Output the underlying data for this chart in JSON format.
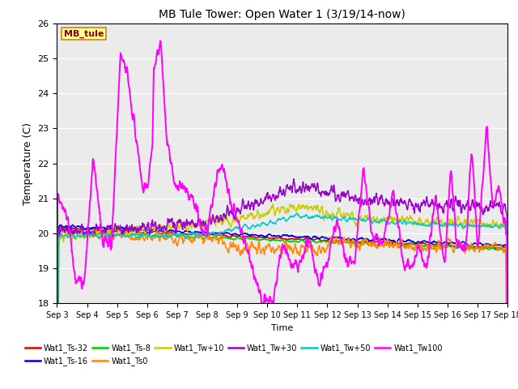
{
  "title": "MB Tule Tower: Open Water 1 (3/19/14-now)",
  "xlabel": "Time",
  "ylabel": "Temperature (C)",
  "ylim": [
    18.0,
    26.0
  ],
  "yticks": [
    18.0,
    19.0,
    20.0,
    21.0,
    22.0,
    23.0,
    24.0,
    25.0,
    26.0
  ],
  "xtick_labels": [
    "Sep 3",
    "Sep 4",
    "Sep 5",
    "Sep 6",
    "Sep 7",
    "Sep 8",
    "Sep 9",
    "Sep 10",
    "Sep 11",
    "Sep 12",
    "Sep 13",
    "Sep 14",
    "Sep 15",
    "Sep 16",
    "Sep 17",
    "Sep 18"
  ],
  "series": [
    {
      "label": "Wat1_Ts-32",
      "color": "#dd0000"
    },
    {
      "label": "Wat1_Ts-16",
      "color": "#0000dd"
    },
    {
      "label": "Wat1_Ts-8",
      "color": "#00cc00"
    },
    {
      "label": "Wat1_Ts0",
      "color": "#ff8800"
    },
    {
      "label": "Wat1_Tw+10",
      "color": "#cccc00"
    },
    {
      "label": "Wat1_Tw+30",
      "color": "#9900cc"
    },
    {
      "label": "Wat1_Tw+50",
      "color": "#00cccc"
    },
    {
      "label": "Wat1_Tw100",
      "color": "#ff00ff"
    }
  ],
  "legend_box_facecolor": "#ffff99",
  "legend_box_edgecolor": "#cc8800",
  "legend_text_color": "#880000",
  "plot_bg_color": "#ebebeb",
  "grid_color": "#ffffff"
}
